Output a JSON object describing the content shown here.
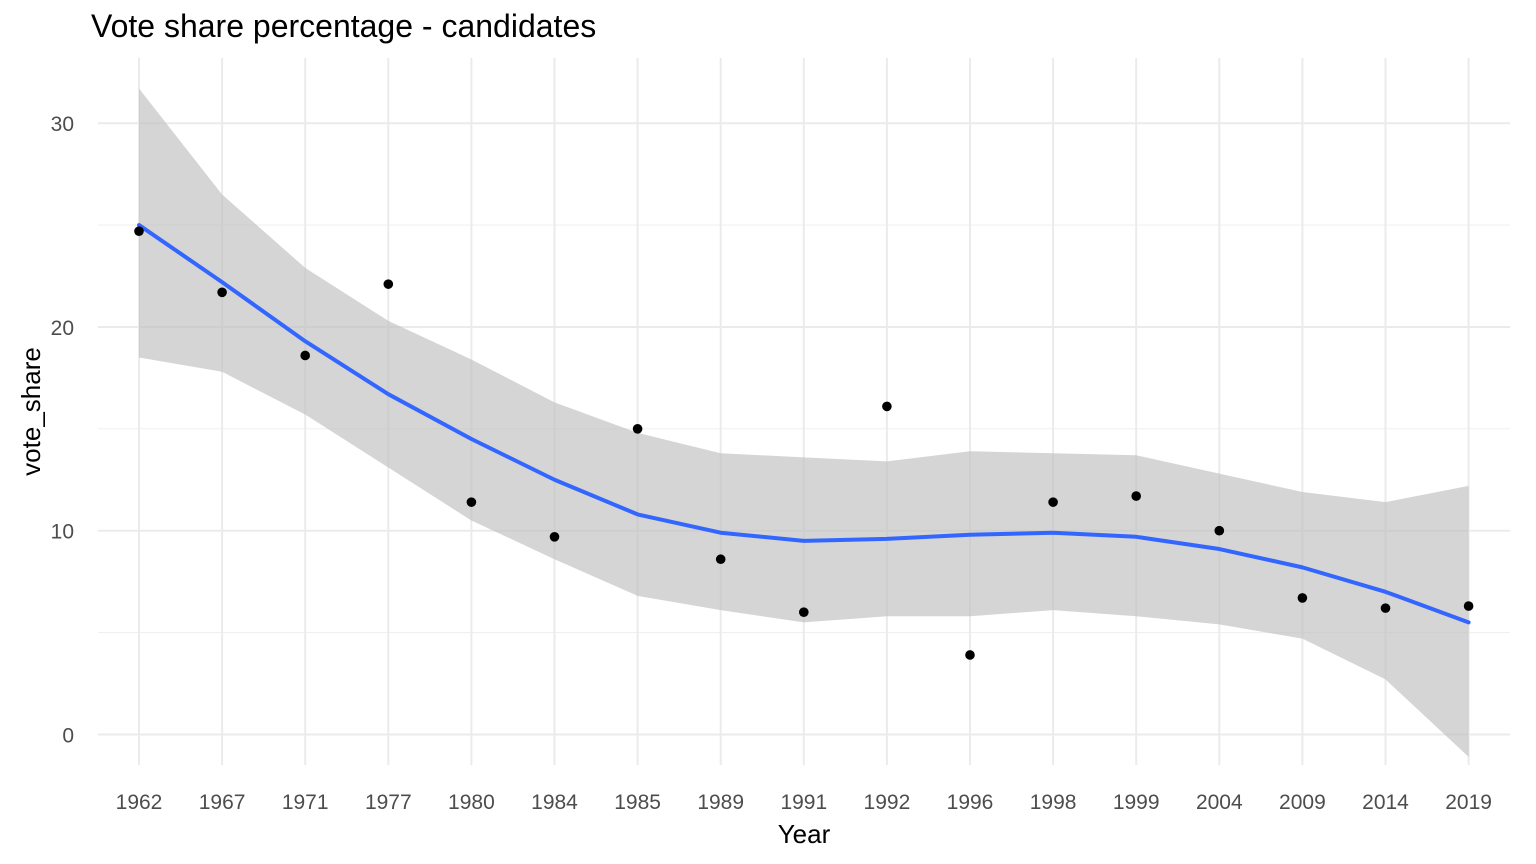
{
  "chart_data": {
    "type": "scatter",
    "title": "Vote share percentage - candidates",
    "xlabel": "Year",
    "ylabel": "vote_share",
    "x_scale": "categorical",
    "categories": [
      "1962",
      "1967",
      "1971",
      "1977",
      "1980",
      "1984",
      "1985",
      "1989",
      "1991",
      "1992",
      "1996",
      "1998",
      "1999",
      "2004",
      "2009",
      "2014",
      "2019"
    ],
    "ylim": [
      -1.5,
      33.2
    ],
    "y_ticks": [
      0,
      10,
      20,
      30
    ],
    "grid": true,
    "legend": "none",
    "series": [
      {
        "kind": "points",
        "values": [
          24.7,
          21.7,
          18.6,
          22.1,
          11.4,
          9.7,
          15.0,
          8.6,
          6.0,
          16.1,
          3.9,
          11.4,
          11.7,
          10.0,
          6.7,
          6.2,
          6.3
        ],
        "color": "#000000"
      },
      {
        "kind": "smooth",
        "values": [
          25.0,
          22.2,
          19.3,
          16.7,
          14.5,
          12.5,
          10.8,
          9.9,
          9.5,
          9.6,
          9.8,
          9.9,
          9.7,
          9.1,
          8.2,
          7.0,
          5.5
        ],
        "lower": [
          18.5,
          17.8,
          15.7,
          13.1,
          10.5,
          8.6,
          6.8,
          6.1,
          5.5,
          5.8,
          5.8,
          6.1,
          5.8,
          5.4,
          4.7,
          2.7,
          -1.1
        ],
        "upper": [
          31.7,
          26.5,
          22.9,
          20.3,
          18.4,
          16.3,
          14.8,
          13.8,
          13.6,
          13.4,
          13.9,
          13.8,
          13.7,
          12.8,
          11.9,
          11.4,
          12.2
        ],
        "color": "#3366FF",
        "band_color": "#bfbfbf"
      }
    ]
  }
}
